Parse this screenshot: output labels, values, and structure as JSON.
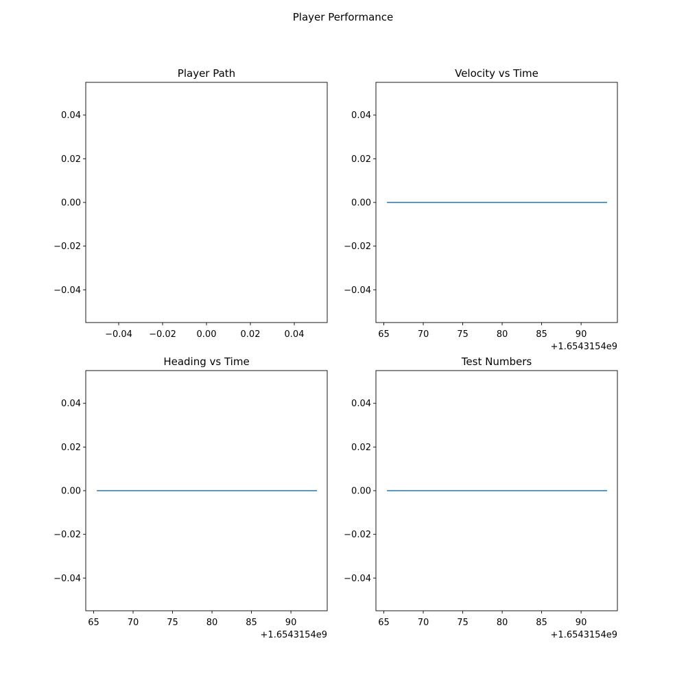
{
  "figure": {
    "title": "Player Performance"
  },
  "chart_data": [
    {
      "type": "line",
      "title": "Player Path",
      "xlabel": "",
      "ylabel": "",
      "xlim": [
        -0.055,
        0.055
      ],
      "ylim": [
        -0.055,
        0.055
      ],
      "xticks": [
        "−0.04",
        "−0.02",
        "0.00",
        "0.02",
        "0.04"
      ],
      "xtick_values": [
        -0.04,
        -0.02,
        0.0,
        0.02,
        0.04
      ],
      "yticks": [
        "0.04",
        "0.02",
        "0.00",
        "−0.02",
        "−0.04"
      ],
      "ytick_values": [
        0.04,
        0.02,
        0.0,
        -0.02,
        -0.04
      ],
      "offset_text": "",
      "series": []
    },
    {
      "type": "line",
      "title": "Velocity vs Time",
      "xlabel": "",
      "ylabel": "",
      "xlim": [
        64,
        94.6
      ],
      "ylim": [
        -0.055,
        0.055
      ],
      "xticks": [
        "65",
        "70",
        "75",
        "80",
        "85",
        "90"
      ],
      "xtick_values": [
        65,
        70,
        75,
        80,
        85,
        90
      ],
      "yticks": [
        "0.04",
        "0.02",
        "0.00",
        "−0.02",
        "−0.04"
      ],
      "ytick_values": [
        0.04,
        0.02,
        0.0,
        -0.02,
        -0.04
      ],
      "offset_text": "+1.6543154e9",
      "series": [
        {
          "color": "#1f77b4",
          "x": [
            65.4,
            93.3
          ],
          "y": [
            0,
            0
          ]
        }
      ]
    },
    {
      "type": "line",
      "title": "Heading vs Time",
      "xlabel": "",
      "ylabel": "",
      "xlim": [
        64,
        94.6
      ],
      "ylim": [
        -0.055,
        0.055
      ],
      "xticks": [
        "65",
        "70",
        "75",
        "80",
        "85",
        "90"
      ],
      "xtick_values": [
        65,
        70,
        75,
        80,
        85,
        90
      ],
      "yticks": [
        "0.04",
        "0.02",
        "0.00",
        "−0.02",
        "−0.04"
      ],
      "ytick_values": [
        0.04,
        0.02,
        0.0,
        -0.02,
        -0.04
      ],
      "offset_text": "+1.6543154e9",
      "series": [
        {
          "color": "#1f77b4",
          "x": [
            65.4,
            93.3
          ],
          "y": [
            0,
            0
          ]
        }
      ]
    },
    {
      "type": "line",
      "title": "Test Numbers",
      "xlabel": "",
      "ylabel": "",
      "xlim": [
        64,
        94.6
      ],
      "ylim": [
        -0.055,
        0.055
      ],
      "xticks": [
        "65",
        "70",
        "75",
        "80",
        "85",
        "90"
      ],
      "xtick_values": [
        65,
        70,
        75,
        80,
        85,
        90
      ],
      "yticks": [
        "0.04",
        "0.02",
        "0.00",
        "−0.02",
        "−0.04"
      ],
      "ytick_values": [
        0.04,
        0.02,
        0.0,
        -0.02,
        -0.04
      ],
      "offset_text": "+1.6543154e9",
      "series": [
        {
          "color": "#1f77b4",
          "x": [
            65.4,
            93.3
          ],
          "y": [
            0,
            0
          ]
        }
      ]
    }
  ]
}
